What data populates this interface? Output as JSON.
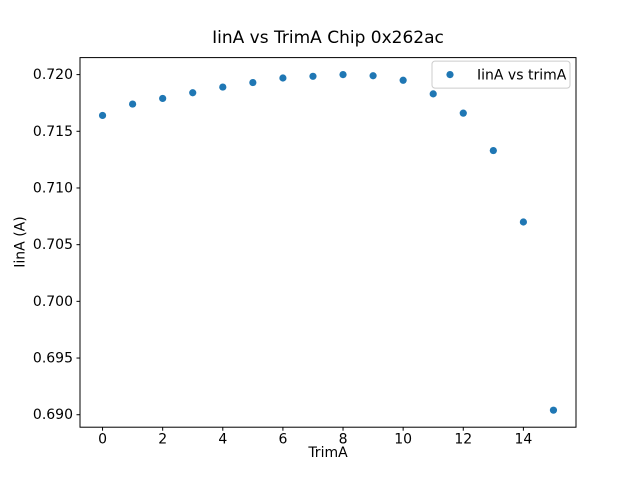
{
  "chart_data": {
    "type": "scatter",
    "title": "IinA vs TrimA Chip 0x262ac",
    "xlabel": "TrimA",
    "ylabel": "IinA (A)",
    "legend": {
      "entries": [
        {
          "label": "IinA vs trimA",
          "marker": "dot"
        }
      ],
      "position": "upper right"
    },
    "x": [
      0,
      1,
      2,
      3,
      4,
      5,
      6,
      7,
      8,
      9,
      10,
      11,
      12,
      13,
      14,
      15
    ],
    "series": [
      {
        "name": "IinA vs trimA",
        "values": [
          0.7164,
          0.7174,
          0.7179,
          0.7184,
          0.7189,
          0.7193,
          0.7197,
          0.71985,
          0.72,
          0.7199,
          0.7195,
          0.7183,
          0.7166,
          0.7133,
          0.707,
          0.6904
        ]
      }
    ],
    "xlim": [
      -0.75,
      15.75
    ],
    "ylim": [
      0.6889,
      0.7215
    ],
    "xtick_labels": [
      "0",
      "2",
      "4",
      "6",
      "8",
      "10",
      "12",
      "14"
    ],
    "xtick_values": [
      0,
      2,
      4,
      6,
      8,
      10,
      12,
      14
    ],
    "ytick_labels": [
      "0.720",
      "0.715",
      "0.710",
      "0.705",
      "0.700",
      "0.695",
      "0.690"
    ],
    "ytick_values": [
      0.72,
      0.715,
      0.71,
      0.705,
      0.7,
      0.695,
      0.69
    ],
    "grid": false,
    "marker_color": "#1f77b4",
    "axis_color": "#000000",
    "legend_border_color": "#cccccc",
    "background_color": "#ffffff"
  }
}
